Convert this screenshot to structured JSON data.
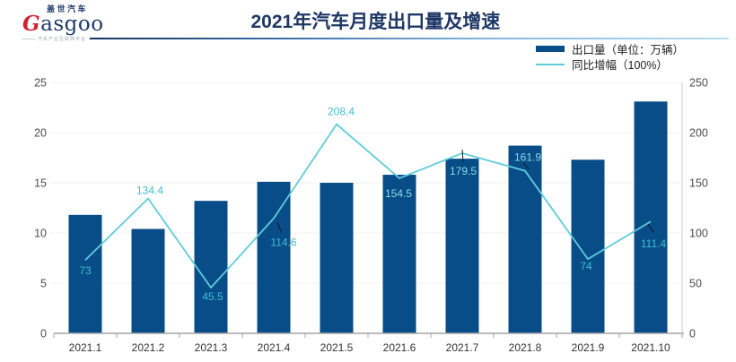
{
  "header": {
    "logo": {
      "cn": "盖世汽车",
      "en_g": "G",
      "en_rest": "asgoo",
      "tagline": "汽车产业互联网平台"
    },
    "title": "2021年汽车月度出口量及增速"
  },
  "legend": {
    "bar_label": "出口量（单位：万辆）",
    "line_label": "同比增幅（100%）"
  },
  "colors": {
    "bar": "#084d87",
    "line": "#5ecdda",
    "data_label": "#3fbdd0",
    "data_label_on_bar": "#8ed9e5",
    "leader": "#1a1a1a",
    "gridline": "#f0f0f0",
    "axis_line": "#a6a6a6",
    "right_axis_line": "#d4d4d4",
    "axis_text": "#4d4d4d",
    "x_label_text": "#333333",
    "title": "#1e3765",
    "logo_red": "#cf2233",
    "logo_navy": "#1d3a6b"
  },
  "chart_data": {
    "type": "bar+line",
    "categories": [
      "2021.1",
      "2021.2",
      "2021.3",
      "2021.4",
      "2021.5",
      "2021.6",
      "2021.7",
      "2021.8",
      "2021.9",
      "2021.10"
    ],
    "series": [
      {
        "name": "出口量（单位：万辆）",
        "type": "bar",
        "axis": "left",
        "values": [
          11.8,
          10.4,
          13.2,
          15.1,
          15.0,
          15.8,
          17.4,
          18.7,
          17.3,
          23.1
        ]
      },
      {
        "name": "同比增幅（100%）",
        "type": "line",
        "axis": "right",
        "values": [
          73,
          134.4,
          45.5,
          114.6,
          208.4,
          154.5,
          179.5,
          161.9,
          74,
          111.4
        ],
        "data_labels": [
          "73",
          "134.4",
          "45.5",
          "114.6",
          "208.4",
          "154.5",
          "179.5",
          "161.9",
          "74",
          "111.4"
        ]
      }
    ],
    "title": "2021年汽车月度出口量及增速",
    "left_axis": {
      "min": 0,
      "max": 25,
      "step": 5,
      "ticks": [
        0,
        5,
        10,
        15,
        20,
        25
      ]
    },
    "right_axis": {
      "min": 0,
      "max": 250,
      "step": 50,
      "ticks": [
        0,
        50,
        100,
        150,
        200,
        250
      ]
    },
    "grid": "horizontal",
    "legend_position": "top-right"
  }
}
